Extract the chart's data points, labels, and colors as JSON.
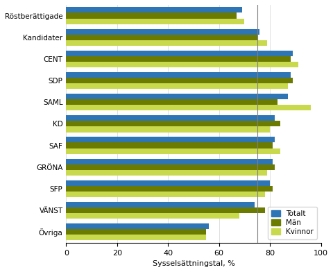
{
  "categories": [
    "Röstberättigade",
    "Kandidater",
    "CENT",
    "SDP",
    "SAML",
    "KD",
    "SAF",
    "GRÖNA",
    "SFP",
    "VÄNST",
    "Övriga"
  ],
  "totalt": [
    69,
    76,
    89,
    88,
    87,
    82,
    82,
    81,
    80,
    74,
    56
  ],
  "man": [
    67,
    75,
    88,
    89,
    83,
    84,
    81,
    82,
    81,
    78,
    55
  ],
  "kvinnor": [
    70,
    79,
    91,
    87,
    96,
    80,
    84,
    79,
    78,
    68,
    55
  ],
  "color_totalt": "#2e75b6",
  "color_man": "#6b7a00",
  "color_kvinnor": "#c9d94e",
  "xlabel": "Sysselsättningstal, %",
  "xlim": [
    0,
    100
  ],
  "xticks": [
    0,
    20,
    40,
    60,
    80,
    100
  ],
  "vline_x": 75,
  "bar_height": 0.26,
  "legend_labels": [
    "Totalt",
    "Män",
    "Kvinnor"
  ],
  "figsize": [
    4.8,
    3.92
  ],
  "dpi": 100
}
